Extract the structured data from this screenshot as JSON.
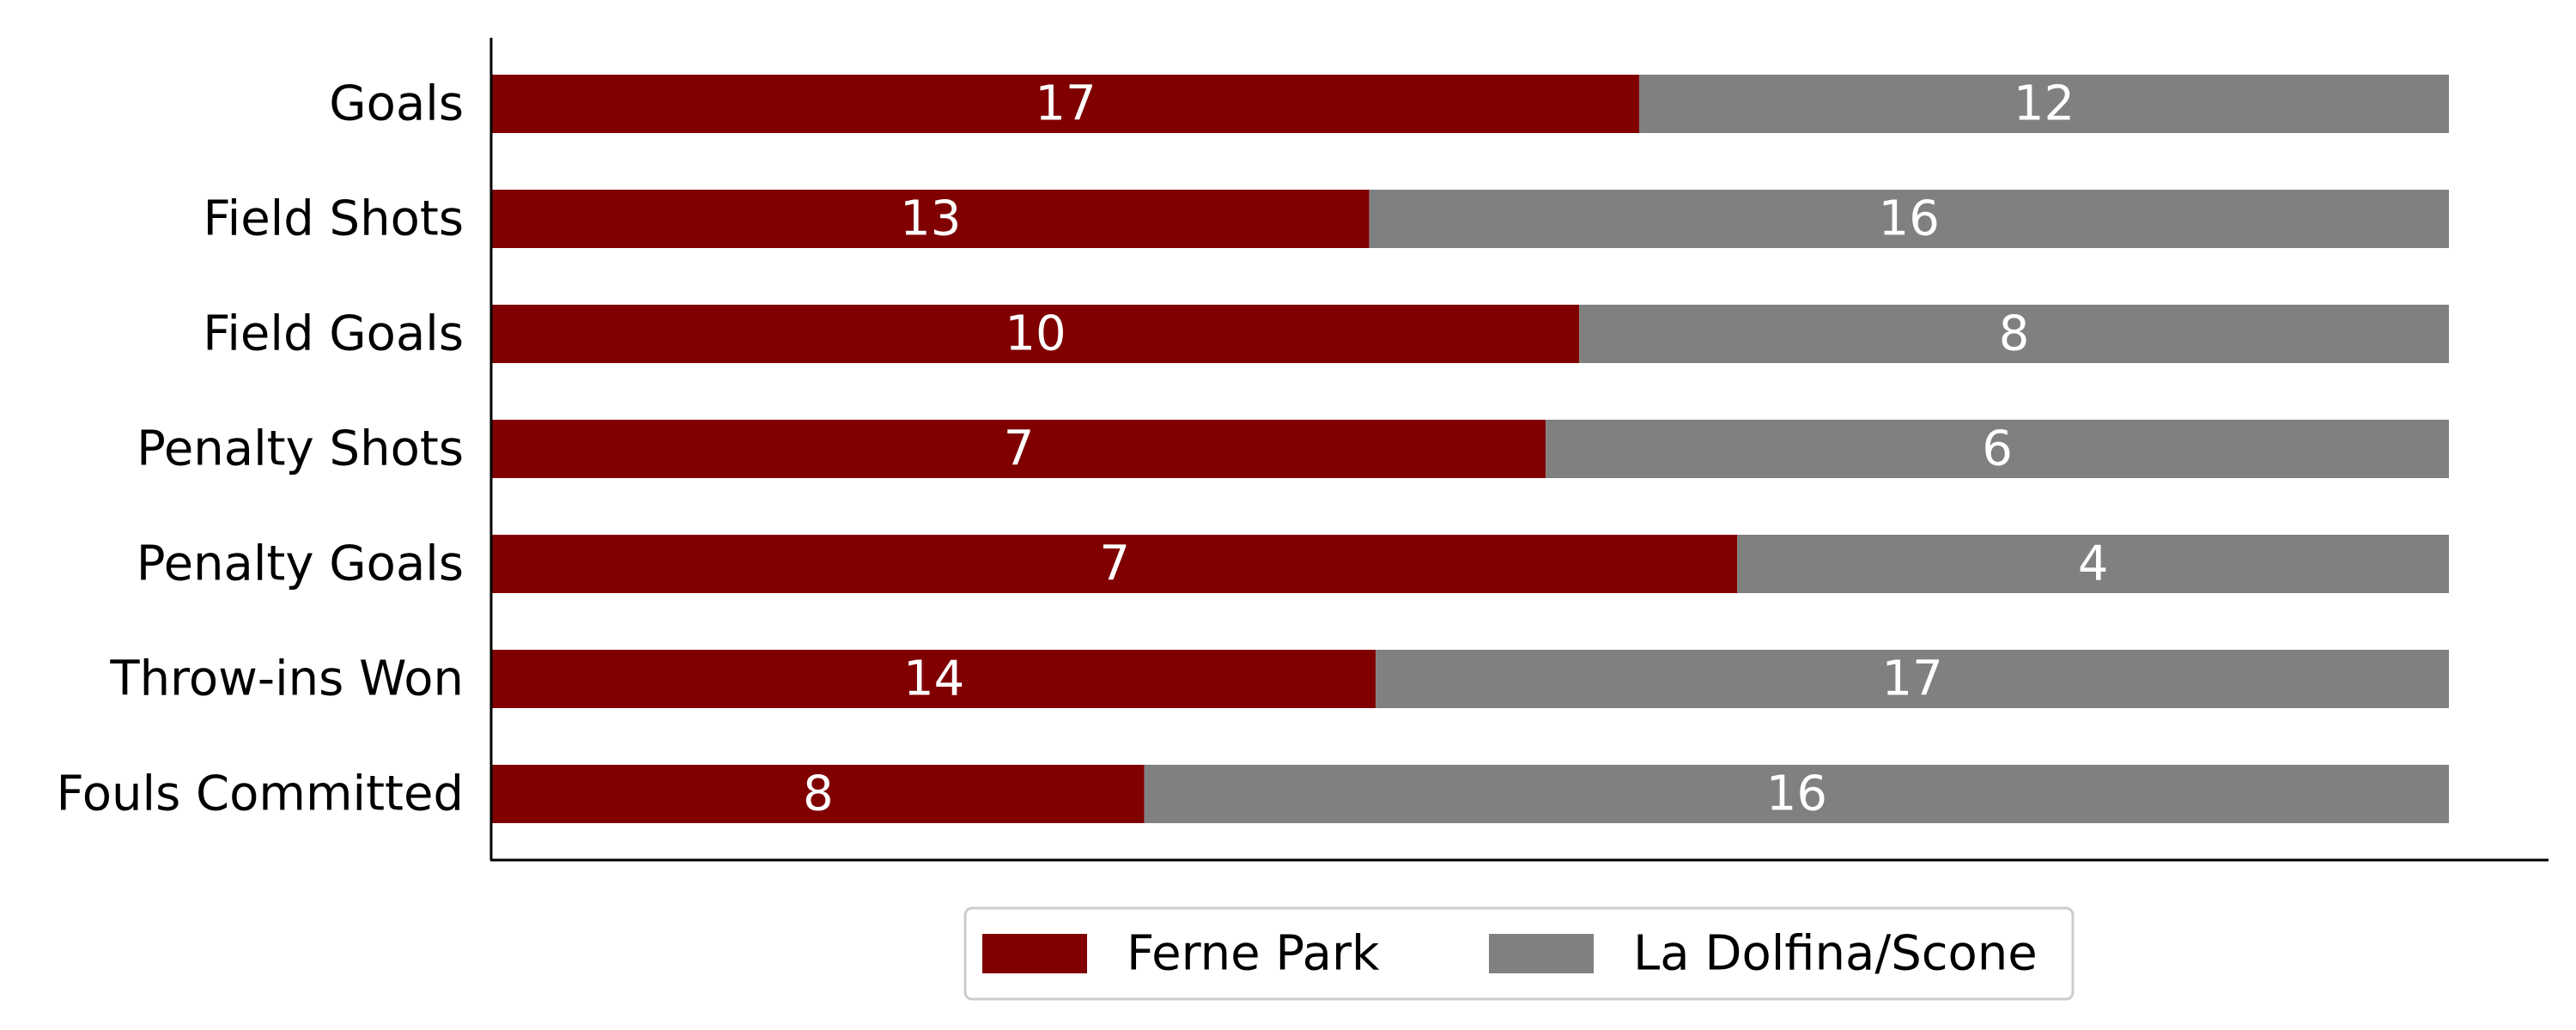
{
  "chart_data": {
    "type": "bar",
    "orientation": "horizontal",
    "stacked": "percent",
    "categories": [
      "Goals",
      "Field Shots",
      "Field Goals",
      "Penalty Shots",
      "Penalty Goals",
      "Throw-ins Won",
      "Fouls Committed"
    ],
    "series": [
      {
        "name": "Ferne Park",
        "values": [
          17,
          13,
          10,
          7,
          7,
          14,
          8
        ],
        "color": "#800000"
      },
      {
        "name": "La Dolfina/Scone",
        "values": [
          12,
          16,
          8,
          6,
          4,
          17,
          16
        ],
        "color": "#808080"
      }
    ],
    "title": "",
    "xlabel": "",
    "ylabel": "",
    "grid": false,
    "legend": "bottom-center"
  }
}
